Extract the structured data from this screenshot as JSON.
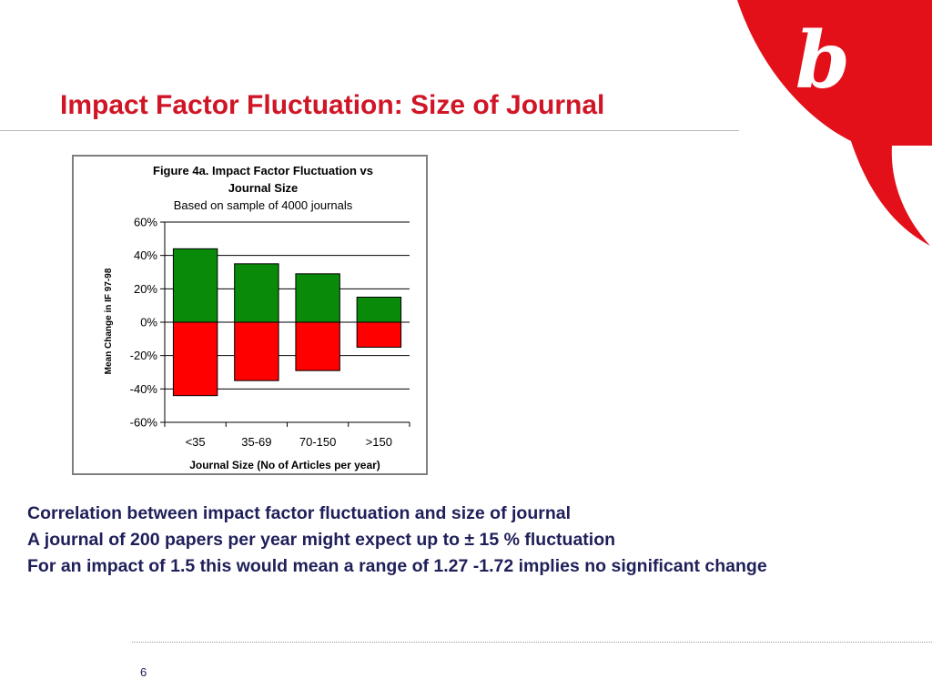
{
  "slide": {
    "title": "Impact Factor Fluctuation: Size of Journal",
    "body_lines": [
      "Correlation between impact factor fluctuation and size of journal",
      "A journal of 200 papers per year might expect up to ± 15 % fluctuation",
      "For an impact of 1.5 this would mean a range of 1.27 -1.72  implies no significant change"
    ],
    "page_number": "6"
  },
  "colors": {
    "title": "#d01626",
    "logo_red": "#e3101a",
    "positive_bar": "#098a09",
    "negative_bar": "#ff0000",
    "body_text": "#1f1f5a"
  },
  "logo": {
    "glyph": "b"
  },
  "chart_data": {
    "type": "bar",
    "title": "Figure 4a. Impact Factor Fluctuation vs Journal Size",
    "subtitle": "Based on sample of 4000 journals",
    "xlabel": "Journal Size (No of Articles per year)",
    "ylabel": "Mean Change in IF 97-98",
    "categories": [
      "<35",
      "35-69",
      "70-150",
      ">150"
    ],
    "series": [
      {
        "values": [
          44,
          35,
          29,
          15
        ],
        "color": "#098a09"
      },
      {
        "values": [
          -44,
          -35,
          -29,
          -15
        ],
        "color": "#ff0000"
      }
    ],
    "ylim": [
      -60,
      60
    ],
    "yticks": [
      60,
      40,
      20,
      0,
      -20,
      -40,
      -60
    ],
    "ytick_labels": [
      "60%",
      "40%",
      "20%",
      "0%",
      "-20%",
      "-40%",
      "-60%"
    ],
    "grid": true,
    "legend": "none"
  }
}
